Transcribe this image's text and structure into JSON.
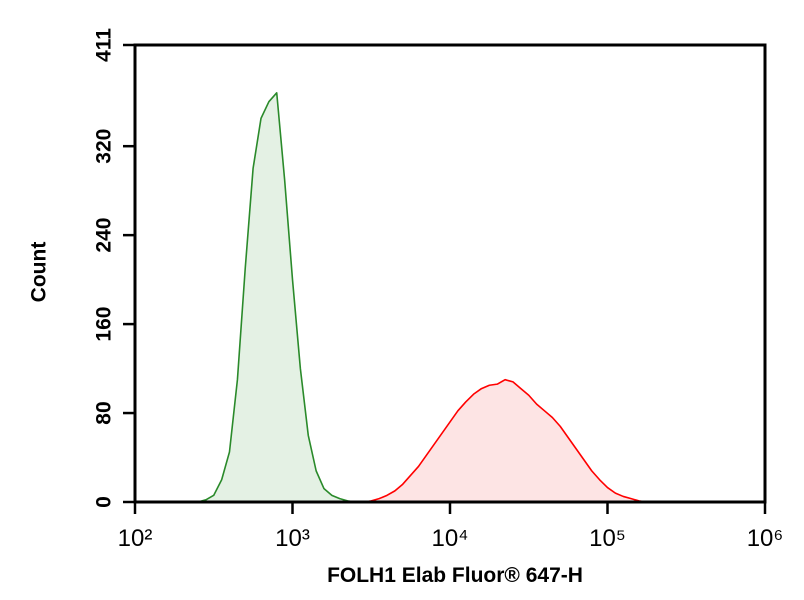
{
  "chart_data": {
    "type": "line",
    "x_label": "FOLH1 Elab Fluor® 647-H",
    "y_label": "Count",
    "x_scale": "log",
    "x": [
      251,
      282,
      316,
      355,
      398,
      447,
      501,
      562,
      631,
      708,
      794,
      891,
      1000,
      1122,
      1259,
      1413,
      1585,
      1778,
      1995,
      2239,
      2512,
      2818,
      3162,
      3548,
      3981,
      4467,
      5012,
      5623,
      6310,
      7079,
      7943,
      8913,
      10000,
      11220,
      12589,
      14125,
      15849,
      17783,
      19953,
      22387,
      25119,
      28184,
      31623,
      35481,
      39811,
      44668,
      50119,
      56234,
      63096,
      70795,
      79433,
      89125,
      100000,
      112202,
      125893,
      141254,
      158489,
      177828,
      199526,
      223872,
      251189
    ],
    "series": [
      {
        "color": "#2a8a2a",
        "fill": "#e4f1e4",
        "values": [
          0,
          2,
          6,
          20,
          45,
          110,
          210,
          300,
          345,
          360,
          368,
          290,
          200,
          120,
          60,
          28,
          12,
          6,
          3,
          1,
          0,
          0,
          0,
          0,
          0,
          0,
          0,
          0,
          0,
          0,
          0,
          0,
          0,
          0,
          0,
          0,
          0,
          0,
          0,
          0,
          0,
          0,
          0,
          0,
          0,
          0,
          0,
          0,
          0,
          0,
          0,
          0,
          0,
          0,
          0,
          0,
          0,
          0,
          0,
          0,
          0
        ]
      },
      {
        "color": "#ff0000",
        "fill": "#fde4e4",
        "values": [
          0,
          0,
          0,
          0,
          0,
          0,
          0,
          0,
          0,
          0,
          0,
          0,
          0,
          0,
          0,
          0,
          0,
          0,
          0,
          0,
          0,
          0,
          1,
          3,
          6,
          10,
          16,
          24,
          32,
          42,
          52,
          62,
          72,
          82,
          90,
          97,
          102,
          105,
          106,
          110,
          108,
          102,
          96,
          88,
          82,
          76,
          68,
          58,
          48,
          38,
          28,
          20,
          13,
          8,
          5,
          3,
          1,
          0,
          0,
          0,
          0
        ]
      }
    ],
    "xlim": [
      100,
      1000000
    ],
    "xticks": [
      {
        "value": 100,
        "label": "10²"
      },
      {
        "value": 1000,
        "label": "10³"
      },
      {
        "value": 10000,
        "label": "10⁴"
      },
      {
        "value": 100000,
        "label": "10⁵"
      },
      {
        "value": 1000000,
        "label": "10⁶"
      }
    ],
    "ylim": [
      0,
      411
    ],
    "yticks": [
      0,
      80,
      160,
      240,
      320,
      411
    ]
  }
}
